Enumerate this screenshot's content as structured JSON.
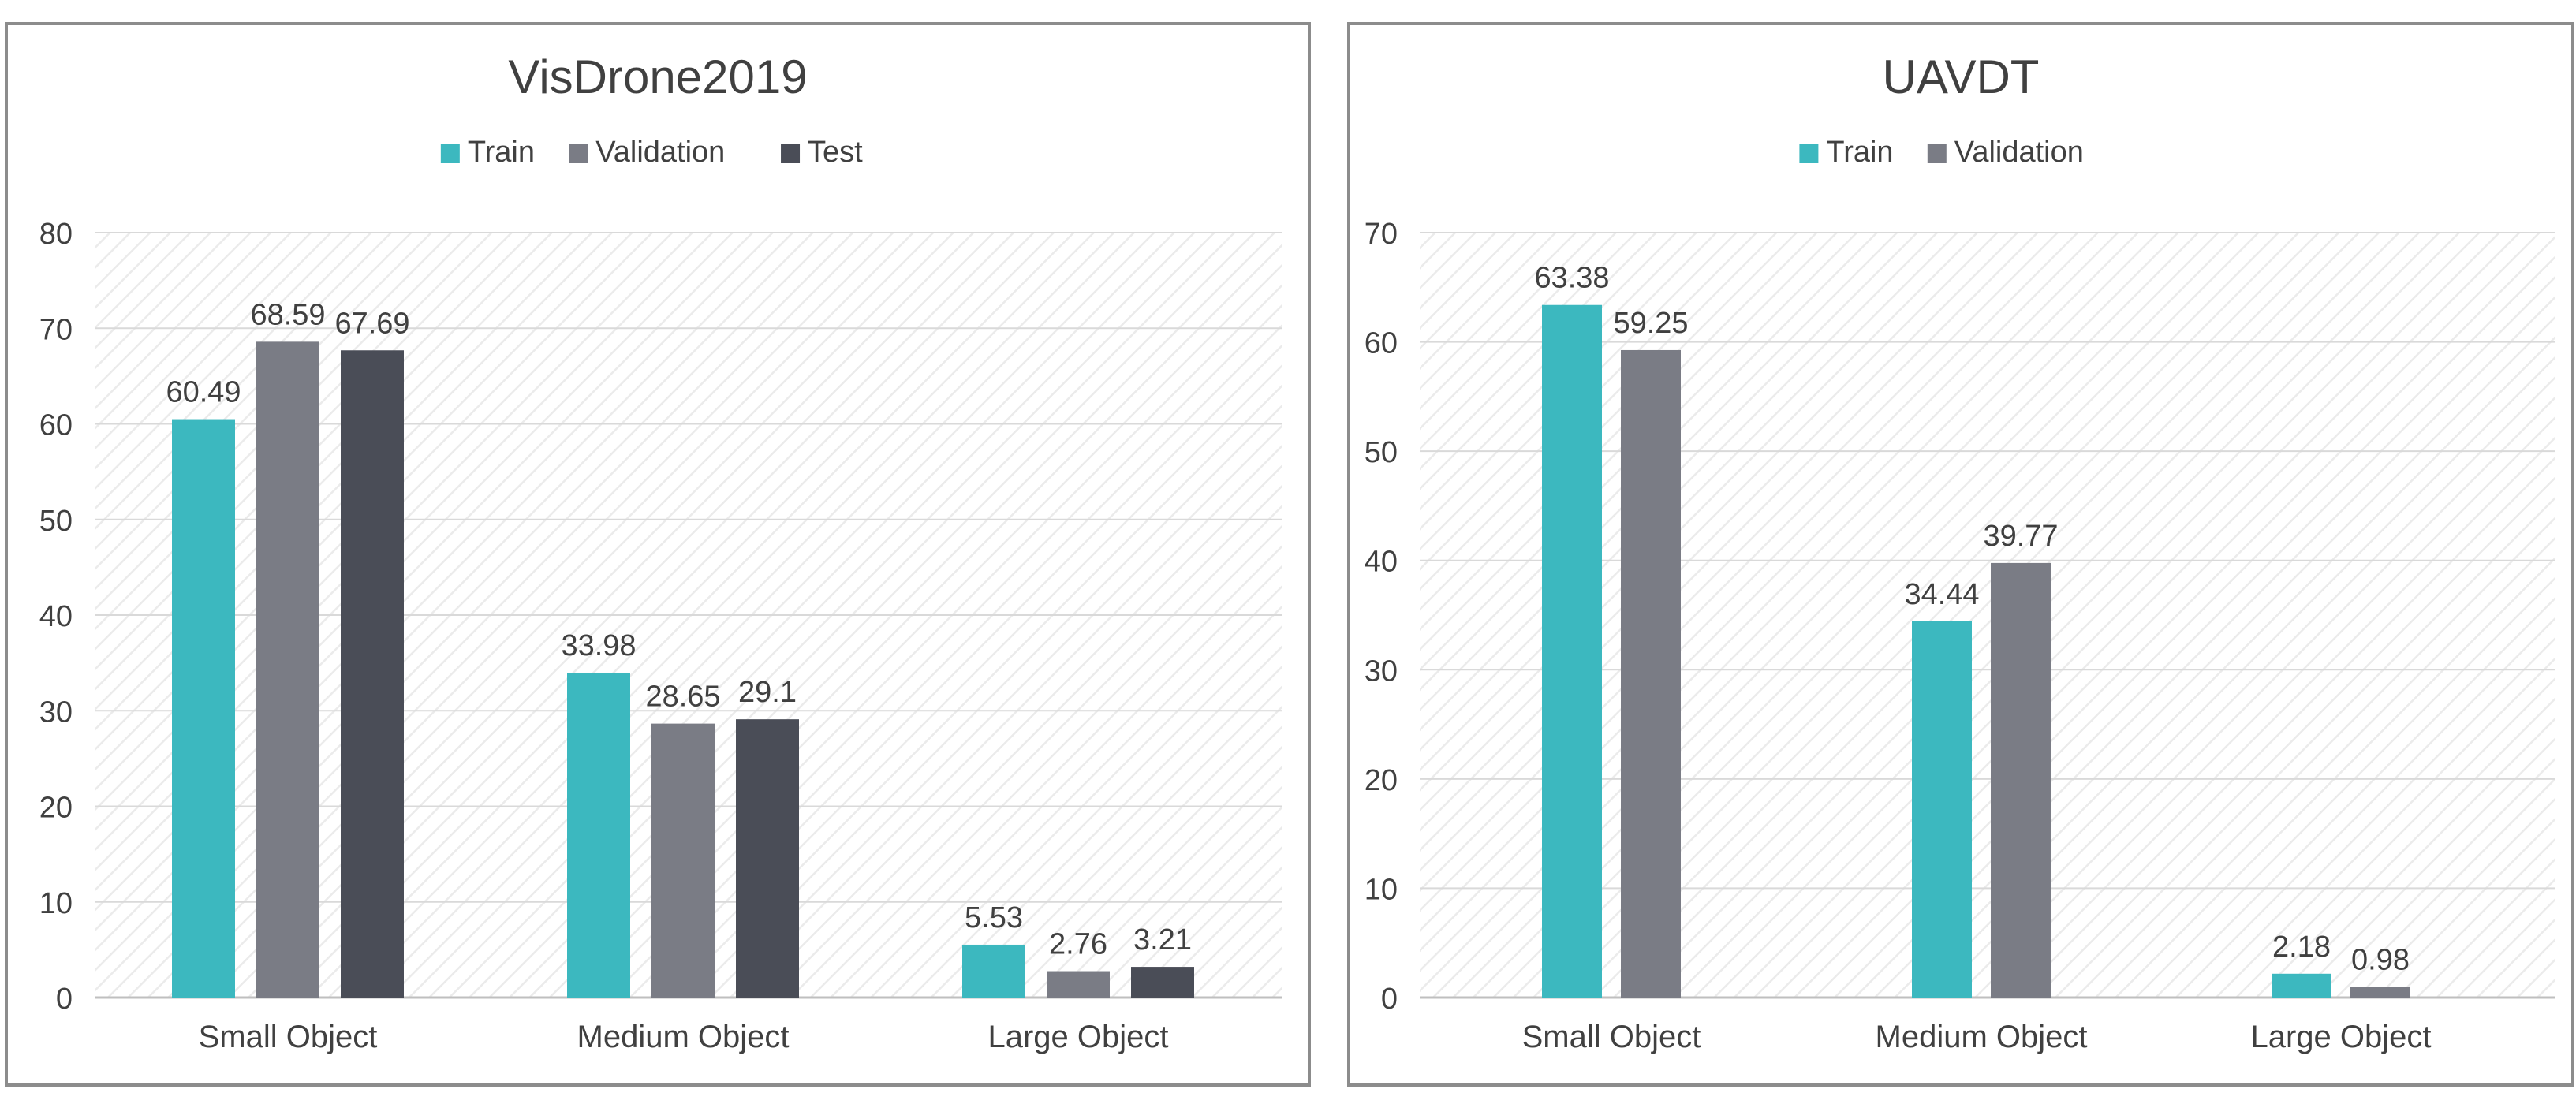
{
  "colors": {
    "train": "#3cb8bf",
    "validation": "#7a7c85",
    "test": "#4a4d57",
    "text": "#404040",
    "grid": "#d9d9d9",
    "frame": "#8c8c8c",
    "hatch": "#ececec"
  },
  "chart_data": [
    {
      "type": "bar",
      "title": "VisDrone2019",
      "categories": [
        "Small Object",
        "Medium Object",
        "Large Object"
      ],
      "series": [
        {
          "name": "Train",
          "color_key": "train",
          "values": [
            60.49,
            33.98,
            5.53
          ],
          "labels": [
            "60.49",
            "33.98",
            "5.53"
          ]
        },
        {
          "name": "Validation",
          "color_key": "validation",
          "values": [
            68.59,
            28.65,
            2.76
          ],
          "labels": [
            "68.59",
            "28.65",
            "2.76"
          ]
        },
        {
          "name": "Test",
          "color_key": "test",
          "values": [
            67.69,
            29.1,
            3.21
          ],
          "labels": [
            "67.69",
            "29.1",
            "3.21"
          ]
        }
      ],
      "ylim": [
        0,
        80
      ],
      "yticks": [
        "0",
        "10",
        "20",
        "30",
        "40",
        "50",
        "60",
        "70",
        "80"
      ],
      "xlabel": "",
      "ylabel": "",
      "legend": "top-center",
      "grid": true
    },
    {
      "type": "bar",
      "title": "UAVDT",
      "categories": [
        "Small Object",
        "Medium Object",
        "Large Object"
      ],
      "series": [
        {
          "name": "Train",
          "color_key": "train",
          "values": [
            63.38,
            34.44,
            2.18
          ],
          "labels": [
            "63.38",
            "34.44",
            "2.18"
          ]
        },
        {
          "name": "Validation",
          "color_key": "validation",
          "values": [
            59.25,
            39.77,
            0.98
          ],
          "labels": [
            "59.25",
            "39.77",
            "0.98"
          ]
        }
      ],
      "ylim": [
        0,
        70
      ],
      "yticks": [
        "0",
        "10",
        "20",
        "30",
        "40",
        "50",
        "60",
        "70"
      ],
      "xlabel": "",
      "ylabel": "",
      "legend": "top-center",
      "grid": true
    }
  ]
}
